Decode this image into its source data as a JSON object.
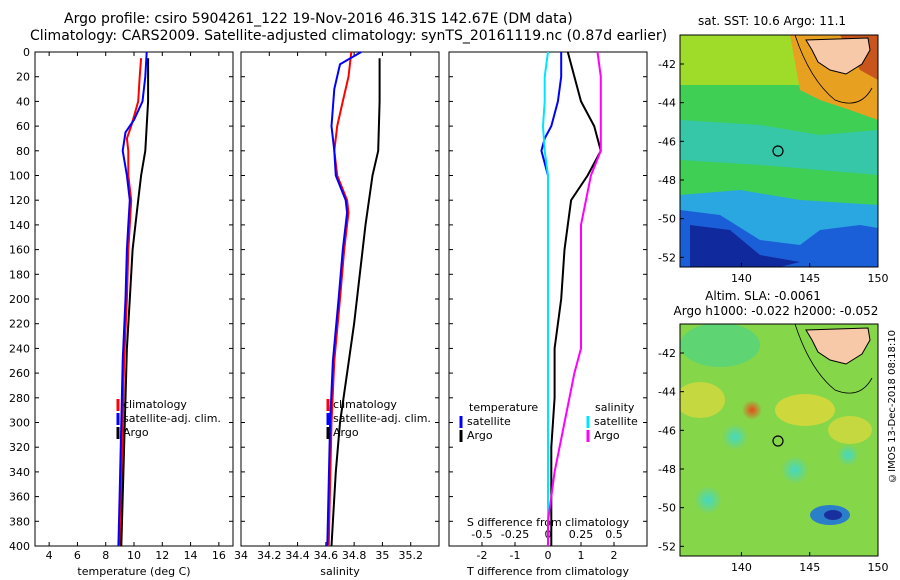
{
  "title": {
    "line1": "Argo profile: csiro 5904261_122 19-Nov-2016 46.31S 142.67E (DM data)",
    "line2": "Climatology: CARS2009. Satellite-adjusted climatology: synTS_20161119.nc (0.87d earlier)"
  },
  "colors": {
    "climatology": "#ff0000",
    "satellite_adj": "#0000ff",
    "argo": "#000000",
    "s_satellite": "#00e5ff",
    "s_argo": "#ff00ff",
    "land": "#f7c9a8"
  },
  "chart_data": [
    {
      "type": "line",
      "name": "temperature",
      "xlabel": "temperature (deg C)",
      "ylabel": "",
      "xlim": [
        3,
        17
      ],
      "ylim": [
        400,
        0
      ],
      "xticks": [
        4,
        6,
        8,
        10,
        12,
        14,
        16
      ],
      "yticks": [
        0,
        20,
        40,
        60,
        80,
        100,
        120,
        140,
        160,
        180,
        200,
        220,
        240,
        260,
        280,
        300,
        320,
        340,
        360,
        380,
        400
      ],
      "legend": [
        "climatology",
        "satellite-adj. clim.",
        "Argo"
      ],
      "series": [
        {
          "name": "climatology",
          "color": "red",
          "depth": [
            5,
            20,
            40,
            60,
            70,
            80,
            100,
            120,
            140,
            160,
            200,
            250,
            300,
            350,
            400
          ],
          "values": [
            10.5,
            10.4,
            10.3,
            9.8,
            9.5,
            9.6,
            9.6,
            9.8,
            9.7,
            9.6,
            9.5,
            9.3,
            9.2,
            9.1,
            9.0
          ]
        },
        {
          "name": "satellite-adj. clim.",
          "color": "blue",
          "depth": [
            0,
            20,
            40,
            55,
            65,
            80,
            100,
            120,
            140,
            160,
            200,
            250,
            300,
            350,
            400
          ],
          "values": [
            10.9,
            10.8,
            10.6,
            10.0,
            9.4,
            9.2,
            9.5,
            9.7,
            9.6,
            9.5,
            9.4,
            9.2,
            9.1,
            9.0,
            8.9
          ]
        },
        {
          "name": "Argo",
          "color": "black",
          "depth": [
            5,
            20,
            40,
            60,
            80,
            100,
            120,
            140,
            160,
            200,
            240,
            280,
            320,
            360,
            400
          ],
          "values": [
            11.0,
            11.0,
            11.0,
            10.9,
            10.8,
            10.5,
            10.3,
            10.1,
            9.9,
            9.7,
            9.5,
            9.4,
            9.3,
            9.2,
            9.1
          ]
        }
      ]
    },
    {
      "type": "line",
      "name": "salinity",
      "xlabel": "salinity",
      "ylabel": "",
      "xlim": [
        34.0,
        35.4
      ],
      "ylim": [
        400,
        0
      ],
      "xticks": [
        34,
        34.2,
        34.4,
        34.6,
        34.8,
        35,
        35.2
      ],
      "xticklabels": [
        "34",
        "34.2",
        "34.4",
        "34.6",
        "34.8",
        "35",
        "35.2"
      ],
      "legend": [
        "climatology",
        "satellite-adj. clim.",
        "Argo"
      ],
      "series": [
        {
          "name": "climatology",
          "color": "red",
          "depth": [
            0,
            20,
            40,
            60,
            80,
            100,
            120,
            130,
            160,
            200,
            250,
            300,
            350,
            400
          ],
          "values": [
            34.78,
            34.76,
            34.72,
            34.68,
            34.66,
            34.68,
            34.75,
            34.76,
            34.73,
            34.7,
            34.66,
            34.64,
            34.63,
            34.62
          ]
        },
        {
          "name": "satellite-adj. clim.",
          "color": "blue",
          "depth": [
            0,
            10,
            30,
            60,
            80,
            100,
            120,
            130,
            160,
            200,
            250,
            300,
            350,
            400
          ],
          "values": [
            34.85,
            34.7,
            34.66,
            34.64,
            34.66,
            34.67,
            34.74,
            34.75,
            34.72,
            34.69,
            34.65,
            34.63,
            34.62,
            34.61
          ]
        },
        {
          "name": "Argo",
          "color": "black",
          "depth": [
            5,
            40,
            80,
            100,
            140,
            180,
            220,
            260,
            300,
            340,
            380,
            400
          ],
          "values": [
            34.98,
            34.98,
            34.97,
            34.93,
            34.88,
            34.84,
            34.8,
            34.75,
            34.7,
            34.67,
            34.65,
            34.64
          ]
        }
      ]
    },
    {
      "type": "line",
      "name": "differences",
      "xlabel": "T difference from climatology",
      "xlabel_top": "S difference from climatology",
      "xlim": [
        -3,
        3
      ],
      "ylim": [
        400,
        0
      ],
      "xticks": [
        -2,
        -1,
        0,
        1,
        2
      ],
      "s_ticklabels": [
        "-0.5",
        "-0.25",
        "0",
        "0.25",
        "0.5"
      ],
      "legend_temperature": {
        "title": "temperature",
        "items": [
          "satellite",
          "Argo"
        ]
      },
      "legend_salinity": {
        "title": "salinity",
        "items": [
          "satellite",
          "Argo"
        ]
      },
      "series": [
        {
          "name": "T satellite",
          "color": "blue",
          "depth": [
            0,
            20,
            40,
            60,
            70,
            80,
            100,
            140,
            200,
            260,
            320,
            400
          ],
          "values": [
            0.4,
            0.4,
            0.3,
            0.1,
            -0.1,
            -0.2,
            0.0,
            0.0,
            0.0,
            0.0,
            0.0,
            0.0
          ]
        },
        {
          "name": "T Argo",
          "color": "black",
          "depth": [
            0,
            20,
            40,
            60,
            80,
            100,
            120,
            160,
            200,
            240,
            280,
            320,
            360,
            400
          ],
          "values": [
            0.6,
            0.8,
            1.0,
            1.4,
            1.6,
            1.2,
            0.7,
            0.5,
            0.4,
            0.2,
            0.2,
            0.1,
            0.1,
            0.1
          ]
        },
        {
          "name": "S satellite",
          "color": "cyan",
          "depth": [
            0,
            20,
            40,
            60,
            80,
            100,
            140,
            200,
            260,
            320,
            400
          ],
          "values": [
            0.0,
            -0.1,
            -0.1,
            -0.15,
            -0.1,
            0.0,
            0.0,
            0.0,
            0.0,
            0.0,
            0.0
          ]
        },
        {
          "name": "S Argo",
          "color": "magenta",
          "depth": [
            0,
            20,
            40,
            60,
            80,
            100,
            140,
            200,
            240,
            260,
            300,
            340,
            380,
            400
          ],
          "values": [
            1.5,
            1.6,
            1.6,
            1.6,
            1.6,
            1.3,
            1.0,
            1.0,
            1.0,
            0.8,
            0.5,
            0.2,
            0.0,
            0.0
          ]
        }
      ]
    },
    {
      "type": "heatmap",
      "name": "sst_map",
      "title": "sat. SST: 10.6 Argo: 11.1",
      "xticks": [
        140,
        145,
        150
      ],
      "yticks": [
        -42,
        -44,
        -46,
        -48,
        -50,
        -52
      ],
      "xlim": [
        135.5,
        150
      ],
      "ylim": [
        -52.5,
        -40.5
      ],
      "argo_position": {
        "lon": 142.67,
        "lat": -46.31
      }
    },
    {
      "type": "heatmap",
      "name": "sla_map",
      "title1": "Altim. SLA: -0.0061",
      "title2": "Argo h1000: -0.022 h2000: -0.052",
      "xticks": [
        140,
        145,
        150
      ],
      "yticks": [
        -42,
        -44,
        -46,
        -48,
        -50,
        -52
      ],
      "xlim": [
        135.5,
        150
      ],
      "ylim": [
        -52.5,
        -40.5
      ],
      "argo_position": {
        "lon": 142.67,
        "lat": -46.31
      }
    }
  ],
  "stamp": "©IMOS 13-Dec-2018 08:18:10"
}
